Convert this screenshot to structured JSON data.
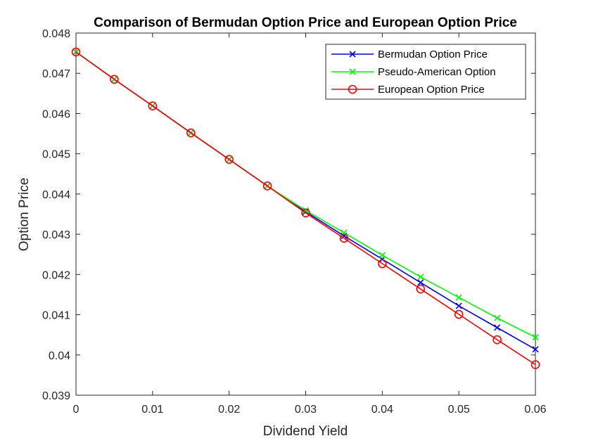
{
  "chart_data": {
    "type": "line",
    "title": "Comparison of Bermudan Option Price and European Option Price",
    "xlabel": "Dividend Yield",
    "ylabel": "Option Price",
    "xlim": [
      0,
      0.06
    ],
    "ylim": [
      0.039,
      0.048
    ],
    "x_ticks": [
      "0",
      "0.01",
      "0.02",
      "0.03",
      "0.04",
      "0.05",
      "0.06"
    ],
    "y_ticks": [
      "0.039",
      "0.04",
      "0.041",
      "0.042",
      "0.043",
      "0.044",
      "0.045",
      "0.046",
      "0.047",
      "0.048"
    ],
    "grid": false,
    "legend_position": "top-right",
    "x": [
      0,
      0.005,
      0.01,
      0.015,
      0.02,
      0.025,
      0.03,
      0.035,
      0.04,
      0.045,
      0.05,
      0.055,
      0.06
    ],
    "series": [
      {
        "name": "Bermudan Option Price",
        "color": "#0000ff",
        "marker": "x",
        "values": [
          0.04753,
          0.04685,
          0.04619,
          0.04552,
          0.04486,
          0.0442,
          0.04356,
          0.04296,
          0.04238,
          0.0418,
          0.04122,
          0.04068,
          0.04014
        ]
      },
      {
        "name": "Pseudo-American Option",
        "color": "#00ff00",
        "marker": "x",
        "values": [
          0.04753,
          0.04685,
          0.04619,
          0.04552,
          0.04486,
          0.0442,
          0.04359,
          0.04304,
          0.04248,
          0.04194,
          0.04143,
          0.04092,
          0.04044
        ]
      },
      {
        "name": "European Option Price",
        "color": "#ff0000",
        "marker": "o",
        "values": [
          0.04753,
          0.04685,
          0.04619,
          0.04552,
          0.04486,
          0.0442,
          0.04353,
          0.0429,
          0.04227,
          0.04164,
          0.04101,
          0.04038,
          0.03976
        ]
      }
    ]
  }
}
